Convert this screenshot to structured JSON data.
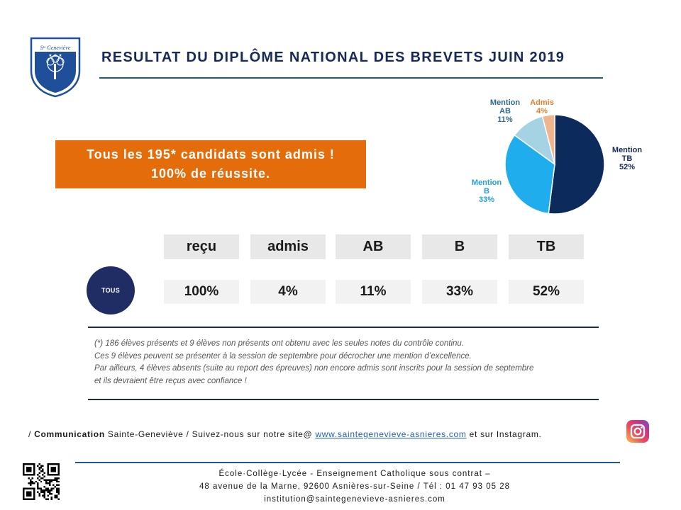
{
  "header": {
    "title": "RESULTAT DU DIPLÔME NATIONAL DES BREVETS JUIN 2019",
    "logo_text": "Sᵗᵉ Geneviève"
  },
  "banner": {
    "line1": "Tous les 195* candidats sont admis !",
    "line2": "100% de réussite."
  },
  "chart_data": {
    "type": "pie",
    "slices": [
      {
        "label_lines": [
          "Mention",
          "TB"
        ],
        "value": 52,
        "value_label": "52%",
        "color": "#0d2a5c"
      },
      {
        "label_lines": [
          "Mention",
          "B"
        ],
        "value": 33,
        "value_label": "33%",
        "color": "#1fadee"
      },
      {
        "label_lines": [
          "Mention",
          "AB"
        ],
        "value": 11,
        "value_label": "11%",
        "color": "#a6d3e3"
      },
      {
        "label_lines": [
          "Admis"
        ],
        "value": 4,
        "value_label": "4%",
        "color": "#f2b48c"
      }
    ],
    "label_colors": [
      "#17295a",
      "#1f9fdc",
      "#2f6b8e",
      "#e08030"
    ]
  },
  "table": {
    "row_label": "TOUS",
    "headers": [
      "reçu",
      "admis",
      "AB",
      "B",
      "TB"
    ],
    "values": [
      "100%",
      "4%",
      "11%",
      "33%",
      "52%"
    ]
  },
  "footnote": [
    "(*) 186 élèves présents et 9 élèves non présents ont obtenu avec les seules notes du contrôle continu.",
    "Ces 9 élèves peuvent se présenter à la session de septembre pour décrocher une mention d’excellence.",
    "Par ailleurs, 4 élèves absents (suite au report des épreuves) non encore admis sont inscrits pour la session de septembre",
    "et ils devraient être reçus avec confiance !"
  ],
  "communication": {
    "prefix": "/ ",
    "label": "Communication",
    "text1": " Sainte-Geneviève / Suivez-nous sur notre site@ ",
    "link": "www.saintegenevieve-asnieres.com",
    "text2": "  et sur Instagram."
  },
  "footer": {
    "line1": "École·Collège·Lycée  - Enseignement Catholique sous contrat –",
    "line2": "48 avenue de la Marne, 92600 Asnières-sur-Seine / Tél : 01 47 93 05 28",
    "line3": "institution@saintegenevieve-asnieres.com"
  }
}
